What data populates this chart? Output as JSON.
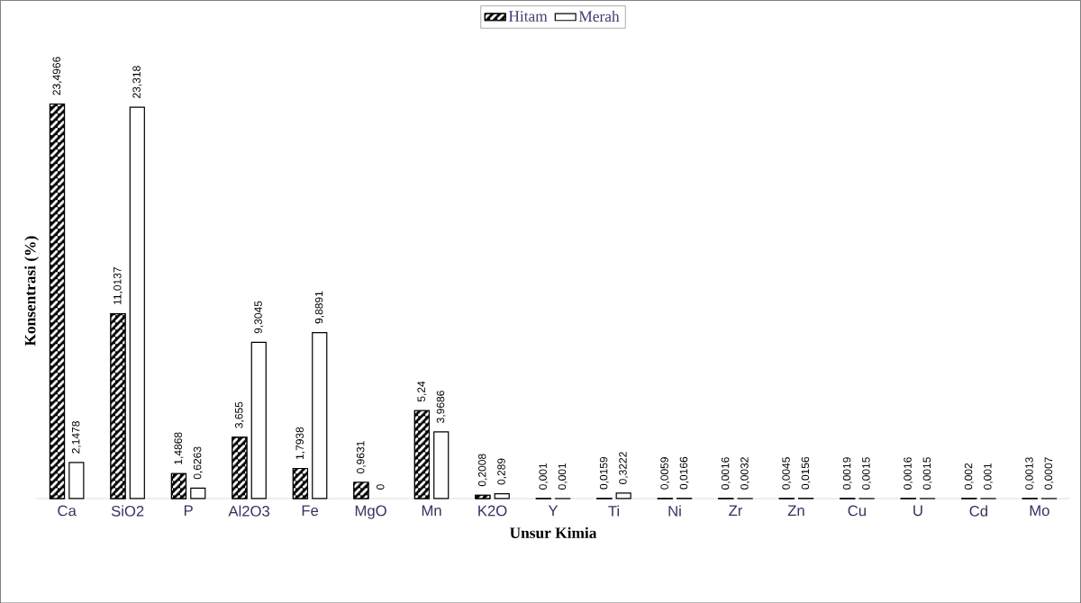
{
  "chart_data": {
    "type": "bar",
    "xlabel": "Unsur Kimia",
    "ylabel": "Konsentrasi (%)",
    "legend": "top",
    "categories": [
      "Ca",
      "SiO2",
      "P",
      "Al2O3",
      "Fe",
      "MgO",
      "Mn",
      "K2O",
      "Y",
      "Ti",
      "Ni",
      "Zr",
      "Zn",
      "Cu",
      "U",
      "Cd",
      "Mo"
    ],
    "series": [
      {
        "name": "Hitam",
        "color": "#000000",
        "values": [
          23.4966,
          11.0137,
          1.4868,
          3.655,
          1.7938,
          0.9631,
          5.24,
          0.2008,
          0.001,
          0.0159,
          0.0059,
          0.0016,
          0.0045,
          0.0019,
          0.0016,
          0.002,
          0.0013
        ],
        "value_labels": [
          "23,4966",
          "11,0137",
          "1,4868",
          "3,655",
          "1,7938",
          "0,9631",
          "5,24",
          "0,2008",
          "0,001",
          "0,0159",
          "0,0059",
          "0,0016",
          "0,0045",
          "0,0019",
          "0,0016",
          "0,002",
          "0,0013"
        ]
      },
      {
        "name": "Merah",
        "color": "#ffffff",
        "values": [
          2.1478,
          23.318,
          0.6263,
          9.3045,
          9.8891,
          0,
          3.9686,
          0.289,
          0.001,
          0.3222,
          0.0166,
          0.0032,
          0.0156,
          0.0015,
          0.0015,
          0.001,
          0.0007
        ],
        "value_labels": [
          "2,1478",
          "23,318",
          "0,6263",
          "9,3045",
          "9,8891",
          "0",
          "3,9686",
          "0,289",
          "0,001",
          "0,3222",
          "0,0166",
          "0,0032",
          "0,0156",
          "0,0015",
          "0,0015",
          "0,001",
          "0,0007"
        ]
      }
    ]
  }
}
